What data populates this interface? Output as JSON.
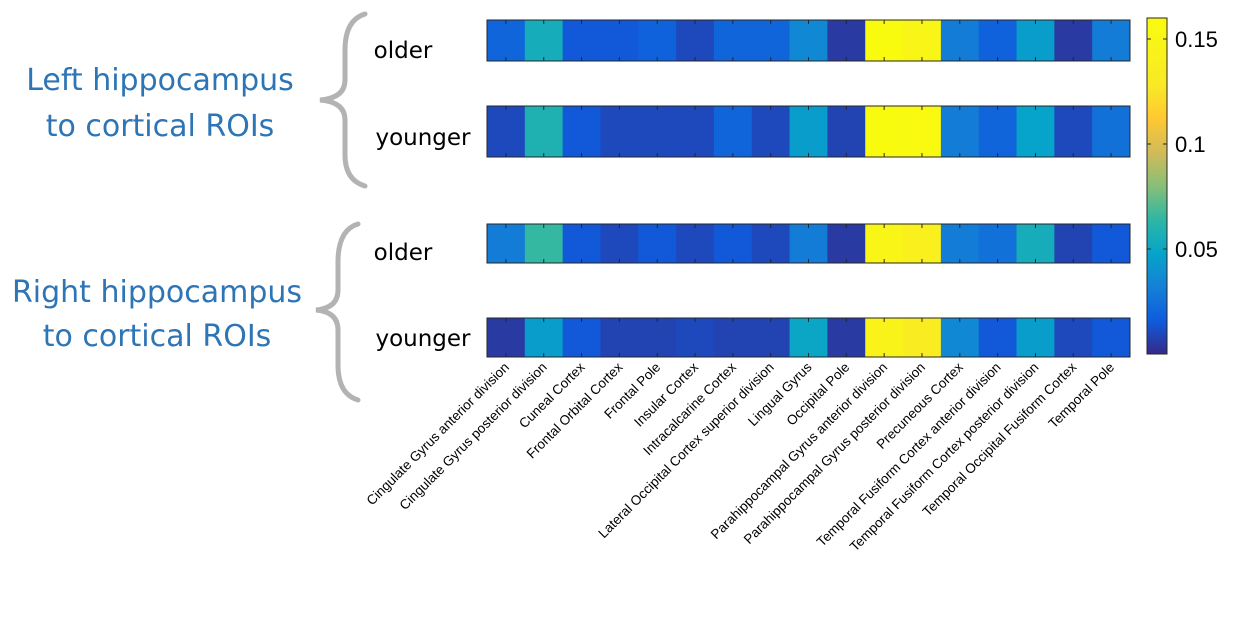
{
  "chart_data": {
    "type": "heatmap",
    "colormap": "parula",
    "clim": [
      0,
      0.16
    ],
    "colorbar_ticks": [
      {
        "value": 0.05,
        "label": "0.05"
      },
      {
        "value": 0.1,
        "label": "0.1"
      },
      {
        "value": 0.15,
        "label": "0.15"
      }
    ],
    "categories": [
      "Cingulate Gyrus anterior division",
      "Cingulate Gyrus posterior division",
      "Cuneal Cortex",
      "Frontal Orbital Cortex",
      "Frontal Pole",
      "Insular Cortex",
      "Intracalcarine Cortex",
      "Lateral Occipital Cortex superior division",
      "Lingual Gyrus",
      "Occipital Pole",
      "Parahippocampal Gyrus anterior division",
      "Parahippocampal Gyrus posterior division",
      "Precuneous Cortex",
      "Temporal Fusiform Cortex anterior division",
      "Temporal Fusiform Cortex posterior division",
      "Temporal Occipital Fusiform Cortex",
      "Temporal Pole"
    ],
    "groups": [
      {
        "label_lines": [
          "Left hippocampus",
          "to cortical ROIs"
        ],
        "rows": [
          {
            "label": "older",
            "values": [
              0.02,
              0.055,
              0.015,
              0.015,
              0.018,
              0.01,
              0.02,
              0.02,
              0.035,
              0.005,
              0.16,
              0.15,
              0.03,
              0.018,
              0.045,
              0.005,
              0.03
            ]
          },
          {
            "label": "younger",
            "values": [
              0.01,
              0.058,
              0.015,
              0.01,
              0.01,
              0.01,
              0.02,
              0.01,
              0.045,
              0.008,
              0.16,
              0.158,
              0.03,
              0.02,
              0.048,
              0.01,
              0.025
            ]
          }
        ]
      },
      {
        "label_lines": [
          "Right hippocampus",
          "to cortical ROIs"
        ],
        "rows": [
          {
            "label": "older",
            "values": [
              0.03,
              0.065,
              0.015,
              0.01,
              0.015,
              0.01,
              0.015,
              0.01,
              0.03,
              0.005,
              0.15,
              0.14,
              0.03,
              0.025,
              0.055,
              0.008,
              0.015
            ]
          },
          {
            "label": "younger",
            "values": [
              0.005,
              0.045,
              0.015,
              0.008,
              0.008,
              0.01,
              0.008,
              0.008,
              0.05,
              0.005,
              0.145,
              0.135,
              0.035,
              0.015,
              0.045,
              0.01,
              0.015
            ]
          }
        ]
      }
    ]
  }
}
